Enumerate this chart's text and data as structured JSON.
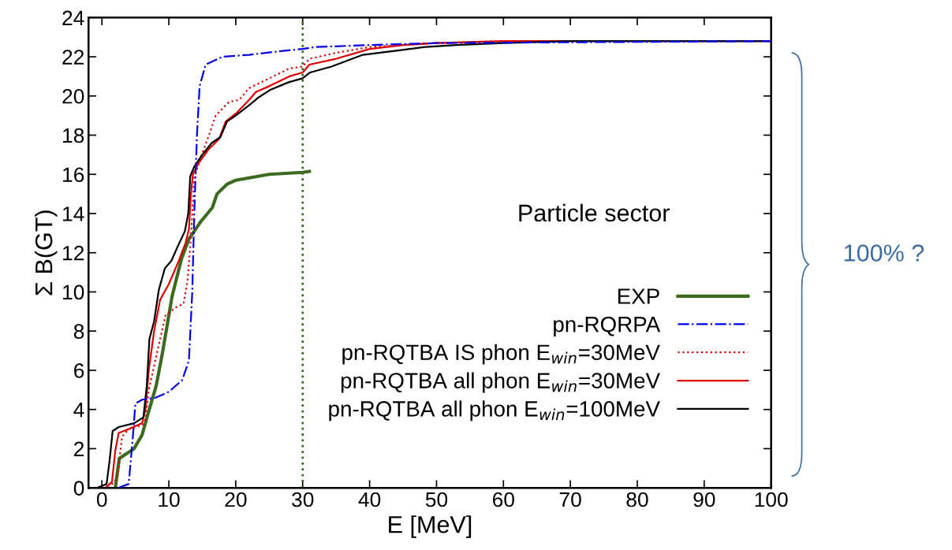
{
  "chart_data": {
    "type": "line",
    "xlabel": "E [MeV]",
    "ylabel": "Σ B(GT)",
    "xlim": [
      -2,
      100
    ],
    "ylim": [
      0,
      24
    ],
    "xticks": [
      0,
      10,
      20,
      30,
      40,
      50,
      60,
      70,
      80,
      90,
      100
    ],
    "yticks": [
      0,
      2,
      4,
      6,
      8,
      10,
      12,
      14,
      16,
      18,
      20,
      22,
      24
    ],
    "grid": false,
    "legend": "bottom right",
    "series": [
      {
        "name": "EXP",
        "color": "#3b6b1e",
        "line_style": "solid",
        "x": [
          2,
          2.6,
          4.8,
          6,
          6.9,
          8.1,
          9,
          10.5,
          11.9,
          13,
          14.8,
          16.5,
          17.2,
          18.7,
          20,
          25,
          30,
          31
        ],
        "values": [
          0,
          1.5,
          2.0,
          2.7,
          3.8,
          5.2,
          6.8,
          9.8,
          11.7,
          12.7,
          13.6,
          14.3,
          15.0,
          15.5,
          15.7,
          16.0,
          16.1,
          16.15
        ]
      },
      {
        "name": "pn-RQRPA",
        "color": "#0000ee",
        "line_style": "dashdot",
        "x": [
          2.5,
          4,
          4.6,
          5,
          6,
          8,
          10,
          12,
          13,
          13.5,
          13.8,
          14.2,
          14.6,
          15.5,
          18,
          22,
          27,
          30,
          32,
          40,
          50,
          100
        ],
        "values": [
          0,
          0.2,
          2.5,
          4.3,
          4.5,
          4.6,
          4.9,
          5.5,
          6.5,
          10,
          14,
          18,
          20.5,
          21.6,
          22.0,
          22.1,
          22.3,
          22.4,
          22.5,
          22.6,
          22.7,
          22.8
        ]
      },
      {
        "name": "pn-RQTBA IS phon E$_{win}$=30MeV",
        "color": "#dd0000",
        "line_style": "dotted",
        "x": [
          1,
          2.3,
          3,
          4,
          6,
          6.5,
          7,
          8.5,
          9.5,
          11,
          12.2,
          12.8,
          13.3,
          13.8,
          14.5,
          16,
          17,
          19,
          20.5,
          22,
          25,
          28,
          30,
          31,
          35,
          40,
          50,
          60,
          100
        ],
        "values": [
          0,
          0.5,
          2.6,
          3.0,
          3.2,
          3.5,
          5.0,
          7.3,
          8.8,
          9.2,
          9.4,
          10.6,
          12.8,
          15.8,
          16.6,
          18.0,
          19.0,
          19.7,
          19.8,
          20.4,
          20.9,
          21.4,
          21.5,
          21.9,
          22.2,
          22.5,
          22.7,
          22.8,
          22.8
        ]
      },
      {
        "name": "pn-RQTBA all phon E$_{win}$=30MeV",
        "color": "#dd0000",
        "line_style": "solid",
        "x": [
          0.5,
          1.5,
          2,
          2.5,
          4,
          6,
          6.5,
          7,
          7.8,
          8.7,
          10,
          11.5,
          12.5,
          13,
          13.3,
          13.6,
          14.5,
          16,
          17.5,
          18.5,
          20,
          22,
          23,
          25,
          28,
          30,
          31,
          35,
          40,
          45,
          50,
          60,
          100
        ],
        "values": [
          0,
          0.3,
          1.9,
          2.8,
          3.0,
          3.3,
          4.0,
          6.0,
          8.0,
          9.6,
          10.4,
          11.6,
          12.5,
          13.2,
          15.0,
          16.0,
          16.6,
          17.3,
          17.8,
          18.7,
          19.1,
          19.8,
          20.2,
          20.5,
          21.0,
          21.2,
          21.6,
          21.9,
          22.4,
          22.6,
          22.7,
          22.8,
          22.8
        ]
      },
      {
        "name": "pn-RQTBA all phon E$_{win}$=100MeV",
        "color": "#000000",
        "line_style": "solid",
        "x": [
          -0.7,
          0.7,
          1.15,
          1.6,
          2.5,
          4.8,
          6.2,
          6.7,
          7.1,
          7.8,
          8.5,
          9.4,
          10.4,
          11.3,
          12.4,
          12.9,
          13.2,
          13.8,
          15,
          16.4,
          17.7,
          18.7,
          20,
          21.9,
          23.3,
          25.1,
          27.9,
          30,
          31.1,
          34.3,
          39,
          43.7,
          48.3,
          53,
          60,
          70,
          100
        ],
        "values": [
          0,
          0.2,
          1.4,
          2.9,
          3.1,
          3.3,
          3.6,
          5.2,
          7.6,
          8.5,
          10.1,
          11.2,
          11.6,
          12.3,
          13.1,
          14.0,
          15.9,
          16.4,
          17.0,
          17.6,
          17.9,
          18.7,
          19.0,
          19.5,
          19.9,
          20.3,
          20.7,
          20.9,
          21.2,
          21.5,
          22.1,
          22.3,
          22.5,
          22.6,
          22.7,
          22.8,
          22.8
        ]
      }
    ],
    "ref_lines": [
      {
        "axis": "x",
        "value": 30,
        "color": "#3b6b1e",
        "line_style": "dotted"
      }
    ],
    "annotations": [
      "Particle sector",
      "100% ?"
    ]
  }
}
